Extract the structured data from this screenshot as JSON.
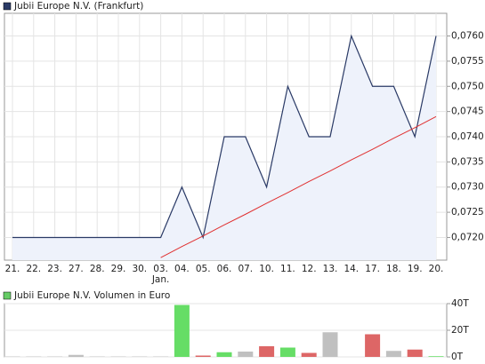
{
  "chart_data": [
    {
      "type": "line",
      "legend": "Jubii Europe N.V. (Frankfurt)",
      "annotation": "Jan.",
      "categories": [
        "21.",
        "22.",
        "23.",
        "27.",
        "28.",
        "29.",
        "30.",
        "03.",
        "04.",
        "05.",
        "06.",
        "07.",
        "10.",
        "11.",
        "12.",
        "13.",
        "14.",
        "17.",
        "18.",
        "19.",
        "20."
      ],
      "series": [
        {
          "name": "Jubii Europe N.V. (Frankfurt)",
          "color": "#2a3a66",
          "values": [
            0.072,
            0.072,
            0.072,
            0.072,
            0.072,
            0.072,
            0.072,
            0.072,
            0.073,
            0.072,
            0.074,
            0.074,
            0.073,
            0.075,
            0.074,
            0.074,
            0.076,
            0.075,
            0.075,
            0.074,
            0.076
          ]
        }
      ],
      "trend": {
        "color": "#e03030",
        "values": [
          null,
          null,
          null,
          null,
          null,
          null,
          null,
          0.0716,
          0.07182,
          0.07203,
          0.07225,
          0.07246,
          0.07268,
          0.07289,
          0.07311,
          0.07332,
          0.07354,
          0.07375,
          0.07397,
          0.07418,
          0.0744
        ]
      },
      "fill": "#eef2fb",
      "ylim": [
        0.07155,
        0.07645
      ],
      "yticks": [
        {
          "value": 0.072,
          "label": "0,0720"
        },
        {
          "value": 0.0725,
          "label": "0,0725"
        },
        {
          "value": 0.073,
          "label": "0,0730"
        },
        {
          "value": 0.0735,
          "label": "0,0735"
        },
        {
          "value": 0.074,
          "label": "0,0740"
        },
        {
          "value": 0.0745,
          "label": "0,0745"
        },
        {
          "value": 0.075,
          "label": "0,0750"
        },
        {
          "value": 0.0755,
          "label": "0,0755"
        },
        {
          "value": 0.076,
          "label": "0,0760"
        }
      ],
      "grid": true
    },
    {
      "type": "bar",
      "legend": "Jubii Europe N.V. Volumen in Euro",
      "legend_color": "#66cc66",
      "values": [
        300,
        300,
        300,
        1500,
        300,
        300,
        300,
        300,
        39000,
        1000,
        3500,
        4000,
        8000,
        7000,
        3000,
        18500,
        0,
        17000,
        4500,
        5500,
        500
      ],
      "colors": [
        "#c0c0c0",
        "#c0c0c0",
        "#c0c0c0",
        "#c0c0c0",
        "#c0c0c0",
        "#c0c0c0",
        "#c0c0c0",
        "#c0c0c0",
        "#66dd66",
        "#dd6666",
        "#66dd66",
        "#c0c0c0",
        "#dd6666",
        "#66dd66",
        "#dd6666",
        "#c0c0c0",
        "#c0c0c0",
        "#dd6666",
        "#c0c0c0",
        "#dd6666",
        "#66dd66"
      ],
      "ylim": [
        0,
        40000
      ],
      "yticks": [
        {
          "value": 0,
          "label": "0T"
        },
        {
          "value": 20000,
          "label": "20T"
        },
        {
          "value": 40000,
          "label": "40T"
        }
      ],
      "grid": true
    }
  ]
}
